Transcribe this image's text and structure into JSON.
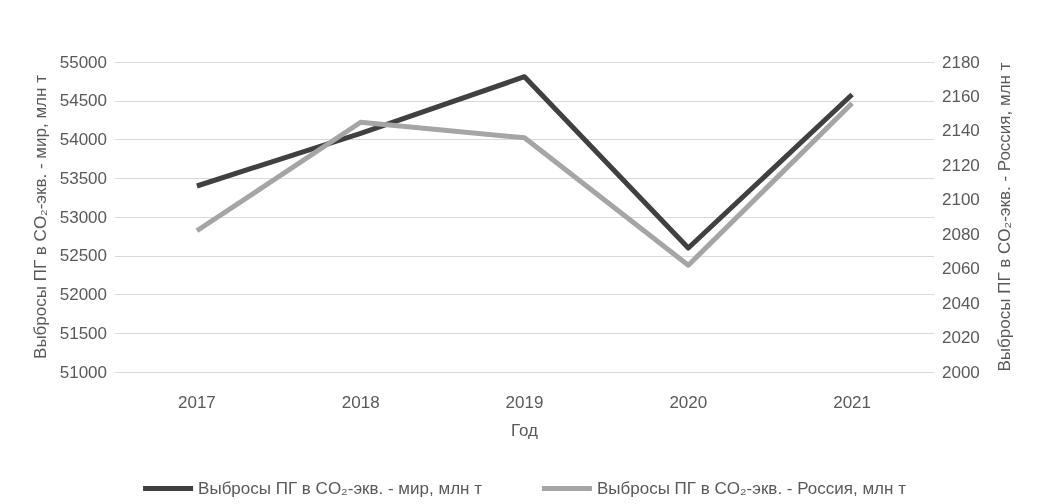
{
  "chart_data": {
    "type": "line",
    "xlabel": "Год",
    "ylabel": "Выбросы ПГ в CO₂-экв. - мир, млн т",
    "y2label": "Выбросы ПГ в CO₂-экв. - Россия, млн т",
    "categories": [
      "2017",
      "2018",
      "2019",
      "2020",
      "2021"
    ],
    "series": [
      {
        "name": "Выбросы ПГ в CO₂-экв. - мир, млн т",
        "color": "#404040",
        "values": [
          53400,
          54080,
          54810,
          52600,
          54580
        ]
      },
      {
        "name": "Выбросы ПГ в CO₂-экв. - Россия, млн т",
        "color": "#a5a5a5",
        "values": [
          2082,
          2145,
          2136,
          2062,
          2156
        ],
        "axis": "y2"
      }
    ],
    "ylim": [
      51000,
      55000
    ],
    "yticks": [
      51000,
      51500,
      52000,
      52500,
      53000,
      53500,
      54000,
      54500,
      55000
    ],
    "y2lim": [
      2000,
      2180
    ],
    "y2ticks": [
      2000,
      2020,
      2040,
      2060,
      2080,
      2100,
      2120,
      2140,
      2160,
      2180
    ],
    "grid": "y",
    "legend": "bottom",
    "marker": "none",
    "line_style": "solid"
  }
}
